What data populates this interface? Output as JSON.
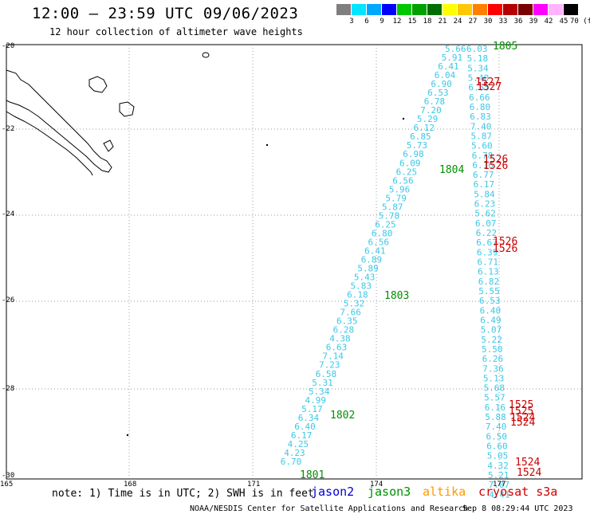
{
  "header": {
    "title": "12:00 – 23:59 UTC 09/06/2023",
    "subtitle": "12 hour collection of altimeter wave heights"
  },
  "colorbar": {
    "labels": [
      "3",
      "6",
      "9",
      "12",
      "15",
      "18",
      "21",
      "24",
      "27",
      "30",
      "33",
      "36",
      "39",
      "42",
      "45",
      "70 (ft)"
    ],
    "colors": [
      "#7f7f7f",
      "#00e5ff",
      "#00a8ff",
      "#0000ff",
      "#00c800",
      "#00a000",
      "#006e00",
      "#ffff00",
      "#ffc800",
      "#ff8000",
      "#ff0000",
      "#b40000",
      "#780000",
      "#ff00ff",
      "#ffb4ff",
      "#000000"
    ]
  },
  "axes": {
    "lat_labels": [
      "-20",
      "-22",
      "-24",
      "-26",
      "-28",
      "-30"
    ],
    "lon_labels": [
      "165",
      "168",
      "171",
      "174",
      "177"
    ]
  },
  "passes": {
    "left_track_color": "#3cc8e6",
    "left_track_values": [
      "5.66",
      "6.03",
      "5.91",
      "5.18",
      "6.41",
      "5.34",
      "6.04",
      "5.40",
      "6.90",
      "6.55",
      "6.53",
      "6.66",
      "6.78",
      "6.80",
      "7.20",
      "6.83",
      "5.29",
      "7.40",
      "6.12",
      "5.87",
      "6.85",
      "5.60",
      "5.73",
      "6.78",
      "6.98",
      "6.16",
      "6.09",
      "6.77",
      "6.25",
      "6.17",
      "6.56",
      "5.84",
      "5.96",
      "6.23",
      "5.79",
      "5.62",
      "5.87",
      "6.07",
      "5.78",
      "6.22",
      "6.25",
      "6.67",
      "6.80",
      "6.39",
      "6.56",
      "6.71",
      "6.41",
      "6.13",
      "6.89",
      "6.82",
      "5.89",
      "5.55",
      "5.43",
      "6.53",
      "5.83",
      "6.40",
      "6.18",
      "6.49",
      "5.32",
      "5.07",
      "7.66",
      "5.22",
      "6.35",
      "5.50",
      "6.28",
      "6.26",
      "4.38",
      "7.36",
      "6.63",
      "5.13",
      "7.14",
      "5.68",
      "7.23",
      "5.57",
      "6.58",
      "6.16",
      "5.31",
      "5.88",
      "5.34",
      "7.40",
      "4.99",
      "6.50",
      "5.17",
      "6.60",
      "6.34",
      "5.05",
      "6.40",
      "4.32",
      "6.17",
      "5.21",
      "4.25",
      "7.07",
      "4.23",
      "4.41",
      "6.70"
    ],
    "times": [
      "1805",
      "1527",
      "1527",
      "1526",
      "1804",
      "1526",
      "1526",
      "1526",
      "1803",
      "1525",
      "1525",
      "1524",
      "1524",
      "1802",
      "1524",
      "1524",
      "1801"
    ]
  },
  "legend": {
    "note": "note: 1) Time is in UTC; 2) SWH is in feet",
    "satellites": [
      {
        "name": "jason2",
        "color": "#0000d0"
      },
      {
        "name": "jason3",
        "color": "#009000"
      },
      {
        "name": "altika",
        "color": "#ff9900"
      },
      {
        "name": "cryosat s3a",
        "color": "#cc0000"
      }
    ]
  },
  "footer": {
    "credit": "NOAA/NESDIS Center for Satellite Applications and Research",
    "timestamp": "Sep  8 08:29:44 UTC 2023"
  }
}
